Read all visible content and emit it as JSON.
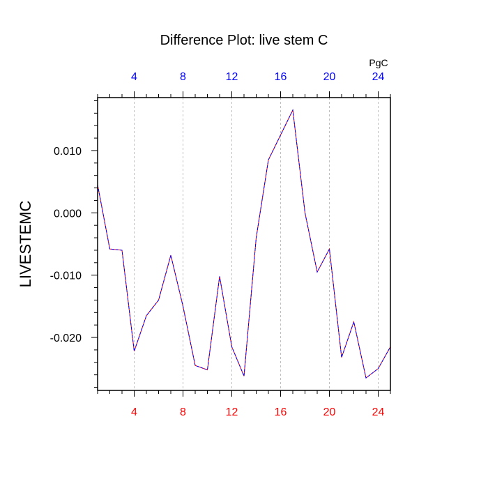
{
  "chart_data": {
    "type": "line",
    "title": "Difference Plot: live stem C",
    "ylabel": "LIVESTEMC",
    "units_label": "PgC",
    "xlim": [
      1,
      25
    ],
    "ylim": [
      -0.0285,
      0.0185
    ],
    "x_ticks": [
      4,
      8,
      12,
      16,
      20,
      24
    ],
    "x_tick_labels": [
      "4",
      "8",
      "12",
      "16",
      "20",
      "24"
    ],
    "y_ticks": [
      0.01,
      0.0,
      -0.01,
      -0.02
    ],
    "y_tick_labels": [
      "0.010",
      "0.000",
      "-0.010",
      "-0.020"
    ],
    "grid": "vertical dashed at x ticks",
    "colors": {
      "bottom_axis_labels": "#ff0000",
      "top_axis_labels": "#0000ff",
      "series_a": "#ff0000",
      "series_b": "#0000ff"
    },
    "series": [
      {
        "x": [
          1,
          2,
          3,
          4,
          5,
          6,
          7,
          8,
          9,
          10,
          11,
          12,
          13,
          14,
          15,
          16,
          17,
          18,
          19,
          20,
          21,
          22,
          23,
          24,
          25
        ],
        "values": [
          0.0045,
          -0.0058,
          -0.006,
          -0.0222,
          -0.0165,
          -0.014,
          -0.0068,
          -0.015,
          -0.0245,
          -0.0252,
          -0.0102,
          -0.0215,
          -0.0262,
          -0.004,
          0.0085,
          0.0125,
          0.0165,
          0.0,
          -0.0095,
          -0.0058,
          -0.0232,
          -0.0175,
          -0.0265,
          -0.025,
          -0.0215
        ]
      },
      {
        "x": [
          1,
          2,
          3,
          4,
          5,
          6,
          7,
          8,
          9,
          10,
          11,
          12,
          13,
          14,
          15,
          16,
          17,
          18,
          19,
          20,
          21,
          22,
          23,
          24,
          25
        ],
        "values": [
          0.0045,
          -0.0058,
          -0.006,
          -0.0222,
          -0.0165,
          -0.014,
          -0.0068,
          -0.015,
          -0.0245,
          -0.0252,
          -0.0102,
          -0.0215,
          -0.0262,
          -0.004,
          0.0085,
          0.0125,
          0.0165,
          0.0,
          -0.0095,
          -0.0058,
          -0.0232,
          -0.0175,
          -0.0265,
          -0.025,
          -0.0215
        ]
      }
    ]
  }
}
